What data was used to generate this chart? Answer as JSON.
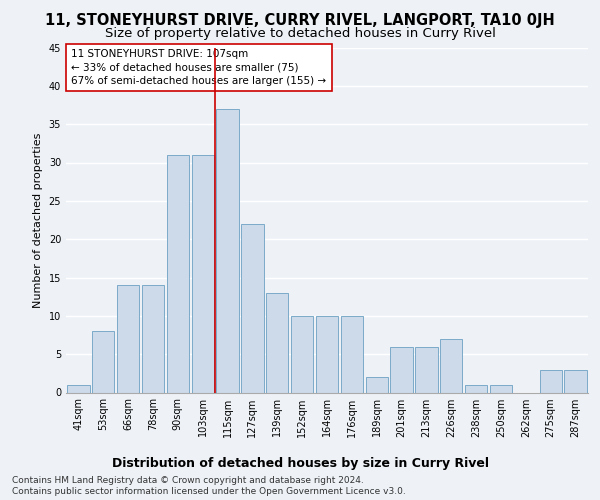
{
  "title": "11, STONEYHURST DRIVE, CURRY RIVEL, LANGPORT, TA10 0JH",
  "subtitle": "Size of property relative to detached houses in Curry Rivel",
  "xlabel": "Distribution of detached houses by size in Curry Rivel",
  "ylabel": "Number of detached properties",
  "categories": [
    "41sqm",
    "53sqm",
    "66sqm",
    "78sqm",
    "90sqm",
    "103sqm",
    "115sqm",
    "127sqm",
    "139sqm",
    "152sqm",
    "164sqm",
    "176sqm",
    "189sqm",
    "201sqm",
    "213sqm",
    "226sqm",
    "238sqm",
    "250sqm",
    "262sqm",
    "275sqm",
    "287sqm"
  ],
  "values": [
    1,
    8,
    14,
    14,
    31,
    31,
    37,
    22,
    13,
    10,
    10,
    10,
    2,
    6,
    6,
    7,
    1,
    1,
    0,
    3,
    3
  ],
  "bar_color": "#ccdaea",
  "bar_edge_color": "#7aaac8",
  "vline_color": "#cc0000",
  "vline_position": 5.5,
  "annotation_line1": "11 STONEYHURST DRIVE: 107sqm",
  "annotation_line2": "← 33% of detached houses are smaller (75)",
  "annotation_line3": "67% of semi-detached houses are larger (155) →",
  "annotation_box_color": "#ffffff",
  "annotation_box_edge_color": "#cc0000",
  "footer_line1": "Contains HM Land Registry data © Crown copyright and database right 2024.",
  "footer_line2": "Contains public sector information licensed under the Open Government Licence v3.0.",
  "ylim": [
    0,
    45
  ],
  "yticks": [
    0,
    5,
    10,
    15,
    20,
    25,
    30,
    35,
    40,
    45
  ],
  "background_color": "#eef2f7",
  "grid_color": "#ffffff",
  "title_fontsize": 10.5,
  "subtitle_fontsize": 9.5,
  "xlabel_fontsize": 9,
  "ylabel_fontsize": 8,
  "tick_fontsize": 7,
  "annotation_fontsize": 7.5,
  "footer_fontsize": 6.5
}
